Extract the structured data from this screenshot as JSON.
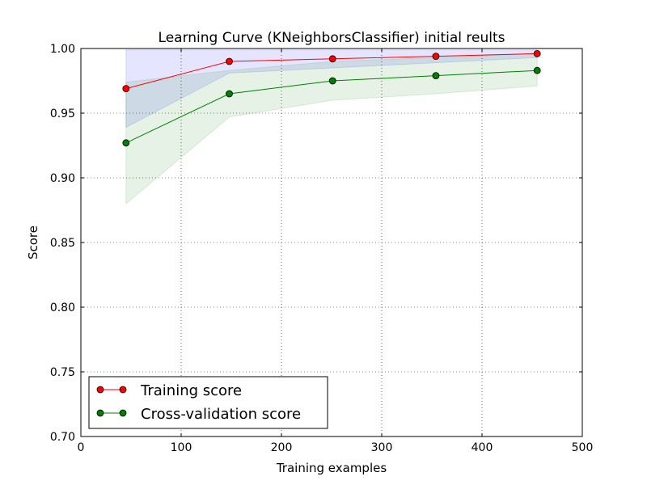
{
  "chart_data": {
    "type": "line",
    "title": "Learning Curve (KNeighborsClassifier) initial reults",
    "xlabel": "Training examples",
    "ylabel": "Score",
    "xlim": [
      0,
      500
    ],
    "ylim": [
      0.7,
      1.0
    ],
    "xticks": [
      0,
      100,
      200,
      300,
      400,
      500
    ],
    "yticks": [
      0.7,
      0.75,
      0.8,
      0.85,
      0.9,
      0.95,
      1.0
    ],
    "xtick_labels": [
      "0",
      "100",
      "200",
      "300",
      "400",
      "500"
    ],
    "ytick_labels": [
      "0.70",
      "0.75",
      "0.80",
      "0.85",
      "0.90",
      "0.95",
      "1.00"
    ],
    "grid": true,
    "legend_position": "lower-left",
    "x": [
      45,
      148,
      251,
      354,
      455
    ],
    "series": [
      {
        "name": "Training score",
        "color": "#ff0000",
        "fill_color": "#0000ff",
        "values": [
          0.969,
          0.99,
          0.992,
          0.994,
          0.996
        ],
        "band_upper": [
          0.999,
          0.999,
          0.999,
          0.999,
          0.999
        ],
        "band_lower": [
          0.939,
          0.981,
          0.985,
          0.989,
          0.993
        ]
      },
      {
        "name": "Cross-validation score",
        "color": "#008000",
        "fill_color": "#008000",
        "values": [
          0.927,
          0.965,
          0.975,
          0.979,
          0.983
        ],
        "band_upper": [
          0.974,
          0.983,
          0.99,
          0.993,
          0.996
        ],
        "band_lower": [
          0.88,
          0.947,
          0.96,
          0.965,
          0.971
        ]
      }
    ]
  }
}
